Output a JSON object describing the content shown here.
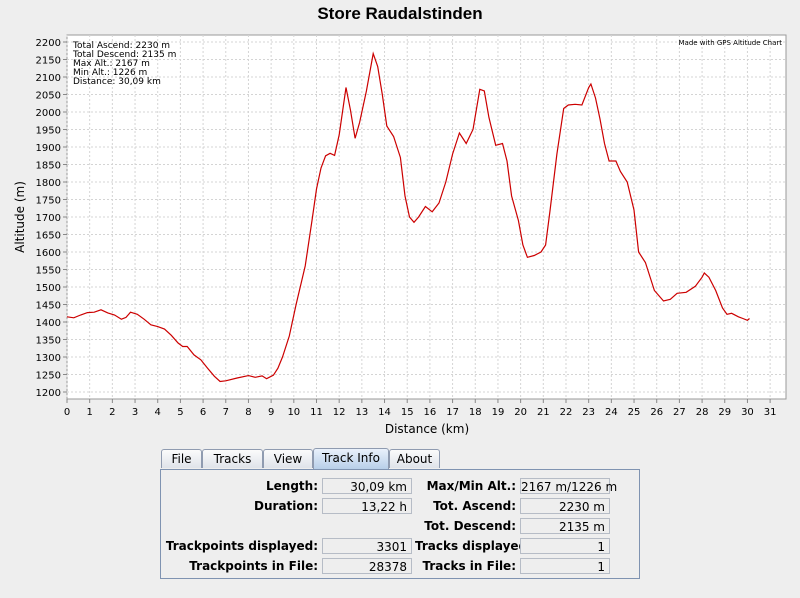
{
  "chart_data": {
    "type": "line",
    "title": "Store Raudalstinden",
    "xlabel": "Distance (km)",
    "ylabel": "Altitude (m)",
    "xlim": [
      0,
      31.7
    ],
    "ylim": [
      1180,
      2220
    ],
    "x_ticks": [
      0,
      1,
      2,
      3,
      4,
      5,
      6,
      7,
      8,
      9,
      10,
      11,
      12,
      13,
      14,
      15,
      16,
      17,
      18,
      19,
      20,
      21,
      22,
      23,
      24,
      25,
      26,
      27,
      28,
      29,
      30,
      31
    ],
    "y_ticks": [
      1200,
      1250,
      1300,
      1350,
      1400,
      1450,
      1500,
      1550,
      1600,
      1650,
      1700,
      1750,
      1800,
      1850,
      1900,
      1950,
      2000,
      2050,
      2100,
      2150,
      2200
    ],
    "grid": true,
    "credit": "Made with GPS Altitude Chart",
    "stats_box": [
      "Total Ascend: 2230 m",
      "Total Descend: 2135 m",
      "Max Alt.: 2167 m",
      "Min Alt.: 1226 m",
      "Distance: 30,09 km"
    ],
    "series": [
      {
        "color": "#cc0000",
        "points": [
          [
            0,
            1415
          ],
          [
            0.3,
            1412
          ],
          [
            0.6,
            1420
          ],
          [
            0.9,
            1427
          ],
          [
            1.2,
            1428
          ],
          [
            1.5,
            1435
          ],
          [
            1.8,
            1426
          ],
          [
            2.1,
            1420
          ],
          [
            2.4,
            1408
          ],
          [
            2.6,
            1413
          ],
          [
            2.8,
            1428
          ],
          [
            3.1,
            1422
          ],
          [
            3.4,
            1408
          ],
          [
            3.7,
            1392
          ],
          [
            4.0,
            1387
          ],
          [
            4.3,
            1380
          ],
          [
            4.6,
            1362
          ],
          [
            4.9,
            1340
          ],
          [
            5.1,
            1330
          ],
          [
            5.3,
            1330
          ],
          [
            5.6,
            1306
          ],
          [
            5.9,
            1292
          ],
          [
            6.2,
            1268
          ],
          [
            6.5,
            1245
          ],
          [
            6.75,
            1230
          ],
          [
            7.0,
            1232
          ],
          [
            7.5,
            1240
          ],
          [
            8.0,
            1247
          ],
          [
            8.3,
            1242
          ],
          [
            8.6,
            1246
          ],
          [
            8.8,
            1238
          ],
          [
            9.1,
            1248
          ],
          [
            9.3,
            1268
          ],
          [
            9.5,
            1300
          ],
          [
            9.8,
            1360
          ],
          [
            10.1,
            1450
          ],
          [
            10.5,
            1560
          ],
          [
            10.8,
            1690
          ],
          [
            11.0,
            1780
          ],
          [
            11.2,
            1840
          ],
          [
            11.4,
            1875
          ],
          [
            11.6,
            1882
          ],
          [
            11.8,
            1876
          ],
          [
            12.0,
            1935
          ],
          [
            12.3,
            2070
          ],
          [
            12.5,
            2005
          ],
          [
            12.7,
            1925
          ],
          [
            12.9,
            1970
          ],
          [
            13.2,
            2060
          ],
          [
            13.5,
            2167
          ],
          [
            13.7,
            2130
          ],
          [
            13.9,
            2050
          ],
          [
            14.1,
            1960
          ],
          [
            14.4,
            1930
          ],
          [
            14.7,
            1870
          ],
          [
            14.9,
            1760
          ],
          [
            15.1,
            1700
          ],
          [
            15.3,
            1685
          ],
          [
            15.5,
            1700
          ],
          [
            15.8,
            1730
          ],
          [
            16.1,
            1715
          ],
          [
            16.4,
            1740
          ],
          [
            16.7,
            1800
          ],
          [
            17.0,
            1880
          ],
          [
            17.3,
            1940
          ],
          [
            17.6,
            1910
          ],
          [
            17.9,
            1950
          ],
          [
            18.2,
            2065
          ],
          [
            18.4,
            2060
          ],
          [
            18.6,
            1985
          ],
          [
            18.9,
            1905
          ],
          [
            19.2,
            1910
          ],
          [
            19.4,
            1860
          ],
          [
            19.6,
            1760
          ],
          [
            19.9,
            1690
          ],
          [
            20.1,
            1620
          ],
          [
            20.3,
            1585
          ],
          [
            20.6,
            1590
          ],
          [
            20.9,
            1600
          ],
          [
            21.1,
            1620
          ],
          [
            21.3,
            1720
          ],
          [
            21.6,
            1880
          ],
          [
            21.9,
            2010
          ],
          [
            22.1,
            2020
          ],
          [
            22.4,
            2022
          ],
          [
            22.7,
            2020
          ],
          [
            23.0,
            2070
          ],
          [
            23.1,
            2080
          ],
          [
            23.3,
            2040
          ],
          [
            23.5,
            1980
          ],
          [
            23.7,
            1910
          ],
          [
            23.9,
            1860
          ],
          [
            24.2,
            1860
          ],
          [
            24.4,
            1830
          ],
          [
            24.7,
            1800
          ],
          [
            25.0,
            1720
          ],
          [
            25.2,
            1600
          ],
          [
            25.5,
            1570
          ],
          [
            25.9,
            1490
          ],
          [
            26.3,
            1460
          ],
          [
            26.6,
            1465
          ],
          [
            26.9,
            1482
          ],
          [
            27.3,
            1485
          ],
          [
            27.7,
            1502
          ],
          [
            28.0,
            1528
          ],
          [
            28.1,
            1540
          ],
          [
            28.3,
            1528
          ],
          [
            28.6,
            1490
          ],
          [
            28.9,
            1440
          ],
          [
            29.1,
            1422
          ],
          [
            29.3,
            1425
          ],
          [
            29.6,
            1415
          ],
          [
            29.8,
            1410
          ],
          [
            30.0,
            1405
          ],
          [
            30.09,
            1410
          ]
        ]
      }
    ]
  },
  "tabs": [
    "File",
    "Tracks",
    "View",
    "Track Info",
    "About"
  ],
  "active_tab": "Track Info",
  "track_info": {
    "length_label": "Length:",
    "length_value": "30,09 km",
    "duration_label": "Duration:",
    "duration_value": "13,22 h",
    "trackpoints_displayed_label": "Trackpoints displayed:",
    "trackpoints_displayed_value": "3301",
    "trackpoints_in_file_label": "Trackpoints in File:",
    "trackpoints_in_file_value": "28378",
    "maxmin_alt_label": "Max/Min Alt.:",
    "maxmin_alt_value": "2167 m/1226 m",
    "tot_ascend_label": "Tot. Ascend:",
    "tot_ascend_value": "2230 m",
    "tot_descend_label": "Tot. Descend:",
    "tot_descend_value": "2135 m",
    "tracks_displayed_label": "Tracks displayed:",
    "tracks_displayed_value": "1",
    "tracks_in_file_label": "Tracks in File:",
    "tracks_in_file_value": "1"
  }
}
